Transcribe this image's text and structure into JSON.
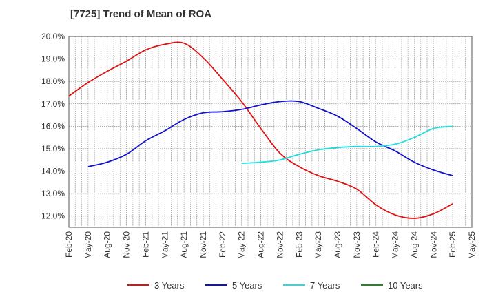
{
  "chart_data": {
    "type": "line",
    "title": "[7725]  Trend of Mean of ROA",
    "xlabel": "",
    "ylabel": "",
    "ylim": [
      11.5,
      20.0
    ],
    "y_ticks": [
      12.0,
      13.0,
      14.0,
      15.0,
      16.0,
      17.0,
      18.0,
      19.0,
      20.0
    ],
    "y_tick_labels": [
      "12.0%",
      "13.0%",
      "14.0%",
      "15.0%",
      "16.0%",
      "17.0%",
      "18.0%",
      "19.0%",
      "20.0%"
    ],
    "x_ticks": [
      "Feb-20",
      "May-20",
      "Aug-20",
      "Nov-20",
      "Feb-21",
      "May-21",
      "Aug-21",
      "Nov-21",
      "Feb-22",
      "May-22",
      "Aug-22",
      "Nov-22",
      "Feb-23",
      "May-23",
      "Aug-23",
      "Nov-23",
      "Feb-24",
      "May-24",
      "Aug-24",
      "Nov-24",
      "Feb-25",
      "May-25"
    ],
    "grid": true,
    "legend_position": "bottom",
    "series": [
      {
        "name": "3 Years",
        "color": "#dd1111",
        "start_index": 0,
        "values": [
          17.35,
          17.95,
          18.45,
          18.9,
          19.4,
          19.65,
          19.7,
          19.05,
          18.1,
          17.1,
          15.9,
          14.8,
          14.2,
          13.8,
          13.55,
          13.2,
          12.5,
          12.05,
          11.9,
          12.1,
          12.55
        ]
      },
      {
        "name": "5 Years",
        "color": "#1111cc",
        "start_index": 1,
        "values": [
          14.2,
          14.4,
          14.75,
          15.35,
          15.8,
          16.3,
          16.6,
          16.65,
          16.75,
          16.95,
          17.1,
          17.1,
          16.8,
          16.45,
          15.9,
          15.3,
          14.9,
          14.4,
          14.05,
          13.8
        ]
      },
      {
        "name": "7 Years",
        "color": "#22dddd",
        "start_index": 9,
        "values": [
          14.35,
          14.4,
          14.5,
          14.75,
          14.95,
          15.05,
          15.1,
          15.1,
          15.2,
          15.5,
          15.9,
          16.0
        ]
      },
      {
        "name": "10 Years",
        "color": "#228822",
        "start_index": 0,
        "values": []
      }
    ]
  }
}
